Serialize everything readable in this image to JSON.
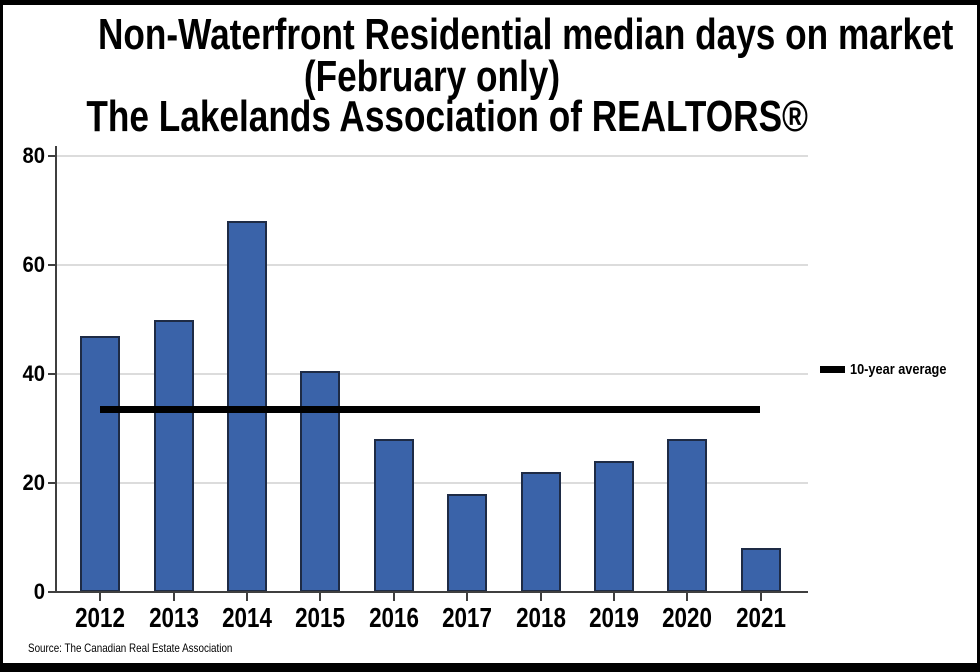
{
  "title": {
    "line1": "Non-Waterfront Residential median days on market",
    "line2": "(February only)",
    "line3": "The Lakelands Association of REALTORS®"
  },
  "legend": {
    "label": "10-year average"
  },
  "source_note": "Source: The Canadian Real Estate Association",
  "colors": {
    "bar_fill": "#3A63A9",
    "bar_border": "#1E2B45",
    "avg_line": "#000000",
    "gridline": "#DCDCDC",
    "axis": "#3F3F3F",
    "text": "#000000",
    "background": "#FFFFFF",
    "frame_border": "#000000"
  },
  "chart_data": {
    "type": "bar",
    "title": "Non-Waterfront Residential median days on market (February only) — The Lakelands Association of REALTORS®",
    "categories": [
      "2012",
      "2013",
      "2014",
      "2015",
      "2016",
      "2017",
      "2018",
      "2019",
      "2020",
      "2021"
    ],
    "values": [
      47,
      50,
      68,
      40.5,
      28,
      18,
      22,
      24,
      28,
      8
    ],
    "xlabel": "",
    "ylabel": "",
    "ylim": [
      0,
      80
    ],
    "yticks": [
      0,
      20,
      40,
      60,
      80
    ],
    "grid": true,
    "legend_position": "right",
    "reference_line": {
      "label": "10-year average",
      "value": 33.4
    }
  }
}
